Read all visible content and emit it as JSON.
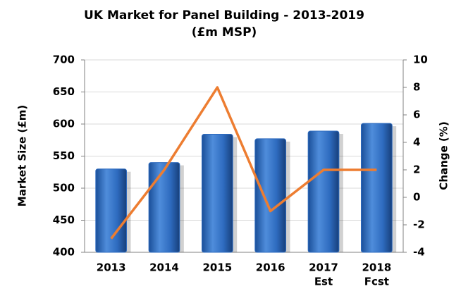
{
  "chart_data": {
    "type": "bar_line",
    "title": "UK Market for Panel Building - 2013-2019",
    "subtitle": "(£m MSP)",
    "y_label": "Market Size (£m)",
    "y2_label": "Change (%)",
    "categories": [
      "2013",
      "2014",
      "2015",
      "2016",
      "2017",
      "2018"
    ],
    "category_notes": [
      null,
      null,
      null,
      null,
      "Est",
      "Fcst"
    ],
    "series": [
      {
        "name": "Market Size",
        "type": "bar",
        "color": "#2e6bbf",
        "values": [
          530,
          540,
          584,
          577,
          589,
          601
        ]
      },
      {
        "name": "Change",
        "type": "line",
        "axis": "y2",
        "color": "#ed7d31",
        "values": [
          -3,
          2,
          8,
          -1,
          2,
          2
        ]
      }
    ],
    "ylim": [
      400,
      700
    ],
    "yticks": [
      400,
      450,
      500,
      550,
      600,
      650,
      700
    ],
    "y2lim": [
      -4,
      10
    ],
    "y2ticks": [
      -4,
      -2,
      0,
      2,
      4,
      6,
      8,
      10
    ],
    "grid": true
  }
}
